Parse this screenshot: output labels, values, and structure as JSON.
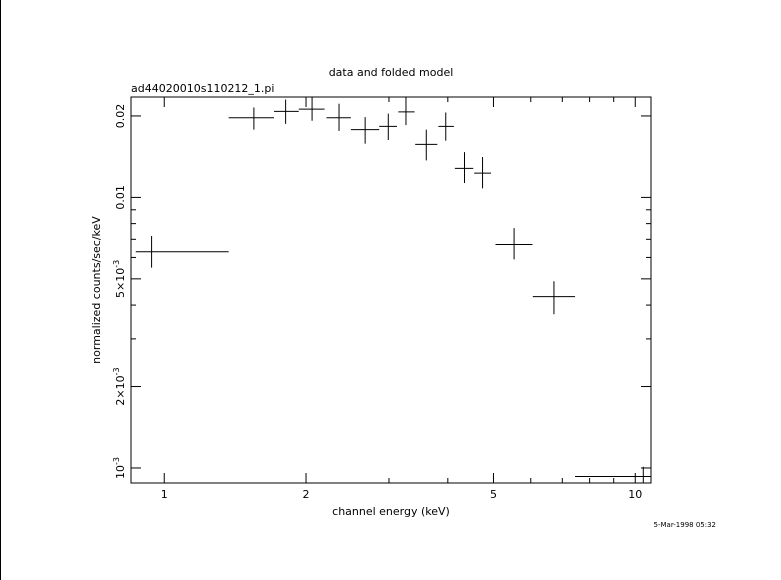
{
  "chart_data": {
    "type": "scatter",
    "title": "data and folded model",
    "subtitle": "ad44020010s110212_1.pi",
    "xlabel": "channel energy (keV)",
    "ylabel": "normalized counts/sec/keV",
    "timestamp": "5-Mar-1998 05:32",
    "x_scale": "log",
    "y_scale": "log",
    "xlim": [
      0.85,
      10.8
    ],
    "ylim": [
      0.00088,
      0.0235
    ],
    "x_ticks": [
      {
        "value": 1,
        "label": "1"
      },
      {
        "value": 2,
        "label": "2"
      },
      {
        "value": 5,
        "label": "5"
      },
      {
        "value": 10,
        "label": "10"
      }
    ],
    "y_ticks": [
      {
        "value": 0.001,
        "base": "10",
        "exp": "-3",
        "mant": ""
      },
      {
        "value": 0.002,
        "base": "2×10",
        "exp": "-3",
        "mant": ""
      },
      {
        "value": 0.005,
        "base": "5×10",
        "exp": "-3",
        "mant": ""
      },
      {
        "value": 0.01,
        "base": "0.01",
        "exp": "",
        "mant": ""
      },
      {
        "value": 0.02,
        "base": "0.02",
        "exp": "",
        "mant": ""
      }
    ],
    "grid": false,
    "points": [
      {
        "x": 0.94,
        "xlo": 0.87,
        "xhi": 1.37,
        "y": 0.0063,
        "ylo": 0.0055,
        "yhi": 0.0072
      },
      {
        "x": 1.55,
        "xlo": 1.37,
        "xhi": 1.71,
        "y": 0.0197,
        "ylo": 0.0178,
        "yhi": 0.0215
      },
      {
        "x": 1.81,
        "xlo": 1.71,
        "xhi": 1.93,
        "y": 0.0208,
        "ylo": 0.0187,
        "yhi": 0.023
      },
      {
        "x": 2.06,
        "xlo": 1.93,
        "xhi": 2.19,
        "y": 0.0212,
        "ylo": 0.0192,
        "yhi": 0.0235
      },
      {
        "x": 2.35,
        "xlo": 2.21,
        "xhi": 2.49,
        "y": 0.0197,
        "ylo": 0.0176,
        "yhi": 0.0222
      },
      {
        "x": 2.67,
        "xlo": 2.49,
        "xhi": 2.86,
        "y": 0.0178,
        "ylo": 0.0158,
        "yhi": 0.0198
      },
      {
        "x": 2.99,
        "xlo": 2.86,
        "xhi": 3.12,
        "y": 0.0183,
        "ylo": 0.0163,
        "yhi": 0.0204
      },
      {
        "x": 3.26,
        "xlo": 3.14,
        "xhi": 3.4,
        "y": 0.0207,
        "ylo": 0.0185,
        "yhi": 0.0234
      },
      {
        "x": 3.6,
        "xlo": 3.41,
        "xhi": 3.8,
        "y": 0.0157,
        "ylo": 0.0137,
        "yhi": 0.0178
      },
      {
        "x": 3.96,
        "xlo": 3.82,
        "xhi": 4.12,
        "y": 0.0183,
        "ylo": 0.0162,
        "yhi": 0.0206
      },
      {
        "x": 4.34,
        "xlo": 4.14,
        "xhi": 4.53,
        "y": 0.0128,
        "ylo": 0.0113,
        "yhi": 0.0147
      },
      {
        "x": 4.74,
        "xlo": 4.55,
        "xhi": 4.94,
        "y": 0.0123,
        "ylo": 0.0108,
        "yhi": 0.0141
      },
      {
        "x": 5.53,
        "xlo": 5.05,
        "xhi": 6.05,
        "y": 0.0067,
        "ylo": 0.0059,
        "yhi": 0.0077
      },
      {
        "x": 6.72,
        "xlo": 6.06,
        "xhi": 7.45,
        "y": 0.0043,
        "ylo": 0.0037,
        "yhi": 0.0049
      },
      {
        "x": 10.4,
        "xlo": 7.45,
        "xhi": 10.8,
        "y": 0.00093,
        "ylo": 0.00088,
        "yhi": 0.00101
      }
    ]
  }
}
